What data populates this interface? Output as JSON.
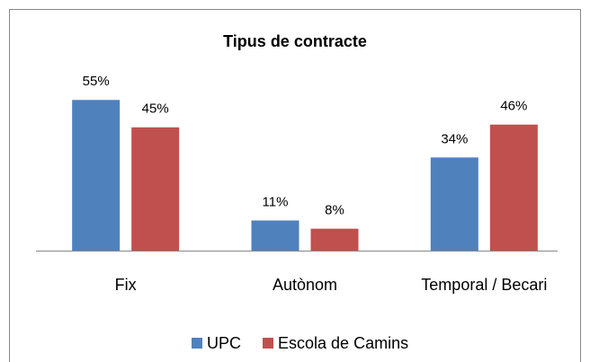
{
  "chart_data": {
    "type": "bar",
    "title": "Tipus de contracte",
    "categories": [
      "Fix",
      "Autònom",
      "Temporal / Becari"
    ],
    "series": [
      {
        "name": "UPC",
        "color": "#4f81bd",
        "values": [
          55,
          11,
          34
        ],
        "value_labels": [
          "55%",
          "11%",
          "34%"
        ]
      },
      {
        "name": "Escola de Camins",
        "color": "#c0504d",
        "values": [
          45,
          8,
          46
        ],
        "value_labels": [
          "45%",
          "8%",
          "46%"
        ]
      }
    ],
    "legend": "bottom"
  }
}
